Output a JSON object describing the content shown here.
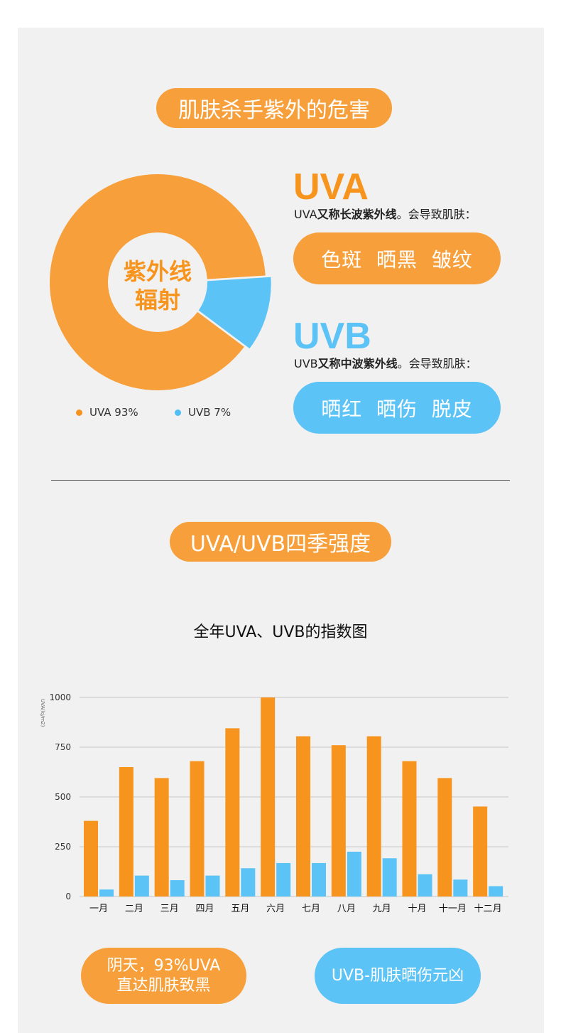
{
  "section1": {
    "title": "肌肤杀手紫外的危害",
    "donut_center_line1": "紫外线",
    "donut_center_line2": "辐射",
    "legend": [
      {
        "label": "UVA 93%",
        "color": "#f7941d"
      },
      {
        "label": "UVB 7%",
        "color": "#4fbff5"
      }
    ],
    "uva": {
      "heading": "UVA",
      "desc_prefix": "UVA",
      "desc_bold": "又称长波紫外线",
      "desc_suffix": "。会导致肌肤：",
      "effects": "色斑  晒黑  皱纹"
    },
    "uvb": {
      "heading": "UVB",
      "desc_prefix": "UVB",
      "desc_bold": "又称中波紫外线",
      "desc_suffix": "。会导致肌肤：",
      "effects": "晒红  晒伤  脱皮"
    }
  },
  "section2": {
    "title": "UVA/UVB四季强度",
    "chart_title": "全年UVA、UVB的指数图"
  },
  "bottom": {
    "left_line1": "阴天，93%UVA",
    "left_line2": "直达肌肤致黑",
    "right": "UVB-肌肤晒伤元凶"
  },
  "colors": {
    "orange": "#f7941d",
    "orange_light": "#f7a03b",
    "blue": "#5bc3f6"
  },
  "chart_data": [
    {
      "type": "pie",
      "labels": [
        "UVA",
        "UVB"
      ],
      "values": [
        93,
        7
      ],
      "colors": [
        "#f7a03b",
        "#5bc3f6"
      ]
    },
    {
      "type": "bar",
      "title": "全年UVA、UVB的指数图",
      "ylabel": "UVA(kj/m2)",
      "ylim": [
        0,
        1000
      ],
      "yticks": [
        0,
        250,
        500,
        750,
        1000
      ],
      "grid": true,
      "categories": [
        "一月",
        "二月",
        "三月",
        "四月",
        "五月",
        "六月",
        "七月",
        "八月",
        "九月",
        "十月",
        "十一月",
        "十二月"
      ],
      "series": [
        {
          "values": [
            380,
            650,
            595,
            680,
            845,
            1000,
            805,
            760,
            805,
            680,
            595,
            452
          ],
          "color": "#f7941d"
        },
        {
          "values": [
            35,
            105,
            82,
            105,
            142,
            168,
            168,
            225,
            192,
            112,
            85,
            52
          ],
          "color": "#5bc3f6"
        }
      ]
    }
  ]
}
